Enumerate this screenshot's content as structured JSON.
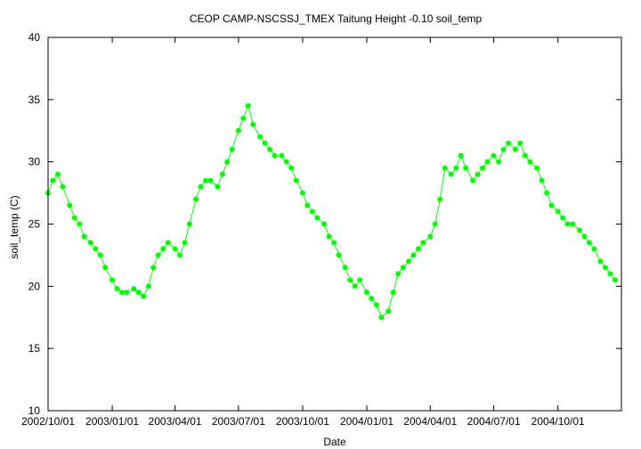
{
  "chart_data": {
    "type": "line",
    "title": "CEOP CAMP-NSCSSJ_TMEX Taitung Height -0.10 soil_temp",
    "xlabel": "Date",
    "ylabel": "soil_temp (C)",
    "ylim": [
      10,
      40
    ],
    "yticks": [
      10,
      15,
      20,
      25,
      30,
      35,
      40
    ],
    "xlim": [
      "2002-10-01",
      "2004-12-31"
    ],
    "xticks": [
      {
        "date": "2002-10-01",
        "label": "2002/10/01"
      },
      {
        "date": "2003-01-01",
        "label": "2003/01/01"
      },
      {
        "date": "2003-04-01",
        "label": "2003/04/01"
      },
      {
        "date": "2003-07-01",
        "label": "2003/07/01"
      },
      {
        "date": "2003-10-01",
        "label": "2003/10/01"
      },
      {
        "date": "2004-01-01",
        "label": "2004/01/01"
      },
      {
        "date": "2004-04-01",
        "label": "2004/04/01"
      },
      {
        "date": "2004-07-01",
        "label": "2004/07/01"
      },
      {
        "date": "2004-10-01",
        "label": "2004/10/01"
      }
    ],
    "grid": false,
    "series": [
      {
        "name": "soil_temp",
        "color": "#00ff00",
        "marker": "circle",
        "points": [
          [
            "2002-10-01",
            27.5
          ],
          [
            "2002-10-08",
            28.5
          ],
          [
            "2002-10-15",
            29.0
          ],
          [
            "2002-10-22",
            28.0
          ],
          [
            "2002-11-01",
            26.5
          ],
          [
            "2002-11-08",
            25.5
          ],
          [
            "2002-11-15",
            25.0
          ],
          [
            "2002-11-22",
            24.0
          ],
          [
            "2002-12-01",
            23.5
          ],
          [
            "2002-12-08",
            23.0
          ],
          [
            "2002-12-15",
            22.5
          ],
          [
            "2002-12-22",
            21.5
          ],
          [
            "2003-01-01",
            20.5
          ],
          [
            "2003-01-08",
            19.8
          ],
          [
            "2003-01-15",
            19.5
          ],
          [
            "2003-01-22",
            19.5
          ],
          [
            "2003-02-01",
            19.8
          ],
          [
            "2003-02-08",
            19.5
          ],
          [
            "2003-02-15",
            19.2
          ],
          [
            "2003-02-22",
            20.0
          ],
          [
            "2003-03-01",
            21.5
          ],
          [
            "2003-03-08",
            22.5
          ],
          [
            "2003-03-15",
            23.0
          ],
          [
            "2003-03-22",
            23.5
          ],
          [
            "2003-04-01",
            23.0
          ],
          [
            "2003-04-08",
            22.5
          ],
          [
            "2003-04-15",
            23.5
          ],
          [
            "2003-04-22",
            25.0
          ],
          [
            "2003-05-01",
            27.0
          ],
          [
            "2003-05-08",
            28.0
          ],
          [
            "2003-05-15",
            28.5
          ],
          [
            "2003-05-22",
            28.5
          ],
          [
            "2003-06-01",
            28.0
          ],
          [
            "2003-06-08",
            29.0
          ],
          [
            "2003-06-15",
            30.0
          ],
          [
            "2003-06-22",
            31.0
          ],
          [
            "2003-07-01",
            32.5
          ],
          [
            "2003-07-08",
            33.5
          ],
          [
            "2003-07-15",
            34.5
          ],
          [
            "2003-07-22",
            33.0
          ],
          [
            "2003-08-01",
            32.0
          ],
          [
            "2003-08-08",
            31.5
          ],
          [
            "2003-08-15",
            31.0
          ],
          [
            "2003-08-22",
            30.5
          ],
          [
            "2003-09-01",
            30.5
          ],
          [
            "2003-09-08",
            30.0
          ],
          [
            "2003-09-15",
            29.5
          ],
          [
            "2003-09-22",
            28.5
          ],
          [
            "2003-10-01",
            27.5
          ],
          [
            "2003-10-08",
            26.5
          ],
          [
            "2003-10-15",
            26.0
          ],
          [
            "2003-10-22",
            25.5
          ],
          [
            "2003-11-01",
            25.0
          ],
          [
            "2003-11-08",
            24.0
          ],
          [
            "2003-11-15",
            23.5
          ],
          [
            "2003-11-22",
            22.5
          ],
          [
            "2003-12-01",
            21.5
          ],
          [
            "2003-12-08",
            20.5
          ],
          [
            "2003-12-15",
            20.0
          ],
          [
            "2003-12-22",
            20.5
          ],
          [
            "2004-01-01",
            19.5
          ],
          [
            "2004-01-08",
            19.0
          ],
          [
            "2004-01-15",
            18.5
          ],
          [
            "2004-01-22",
            17.5
          ],
          [
            "2004-02-01",
            18.0
          ],
          [
            "2004-02-08",
            19.5
          ],
          [
            "2004-02-15",
            21.0
          ],
          [
            "2004-02-22",
            21.5
          ],
          [
            "2004-03-01",
            22.0
          ],
          [
            "2004-03-08",
            22.5
          ],
          [
            "2004-03-15",
            23.0
          ],
          [
            "2004-03-22",
            23.5
          ],
          [
            "2004-04-01",
            24.0
          ],
          [
            "2004-04-08",
            25.0
          ],
          [
            "2004-04-15",
            27.0
          ],
          [
            "2004-04-22",
            29.5
          ],
          [
            "2004-05-01",
            29.0
          ],
          [
            "2004-05-08",
            29.5
          ],
          [
            "2004-05-15",
            30.5
          ],
          [
            "2004-05-22",
            29.5
          ],
          [
            "2004-06-01",
            28.5
          ],
          [
            "2004-06-08",
            29.0
          ],
          [
            "2004-06-15",
            29.5
          ],
          [
            "2004-06-22",
            30.0
          ],
          [
            "2004-07-01",
            30.5
          ],
          [
            "2004-07-08",
            30.0
          ],
          [
            "2004-07-15",
            31.0
          ],
          [
            "2004-07-22",
            31.5
          ],
          [
            "2004-08-01",
            31.0
          ],
          [
            "2004-08-08",
            31.5
          ],
          [
            "2004-08-15",
            30.5
          ],
          [
            "2004-08-22",
            30.0
          ],
          [
            "2004-09-01",
            29.5
          ],
          [
            "2004-09-08",
            28.5
          ],
          [
            "2004-09-15",
            27.5
          ],
          [
            "2004-09-22",
            26.5
          ],
          [
            "2004-10-01",
            26.0
          ],
          [
            "2004-10-08",
            25.5
          ],
          [
            "2004-10-15",
            25.0
          ],
          [
            "2004-10-22",
            25.0
          ],
          [
            "2004-11-01",
            24.5
          ],
          [
            "2004-11-08",
            24.0
          ],
          [
            "2004-11-15",
            23.5
          ],
          [
            "2004-11-22",
            23.0
          ],
          [
            "2004-12-01",
            22.0
          ],
          [
            "2004-12-08",
            21.5
          ],
          [
            "2004-12-15",
            21.0
          ],
          [
            "2004-12-22",
            20.5
          ]
        ]
      }
    ]
  }
}
